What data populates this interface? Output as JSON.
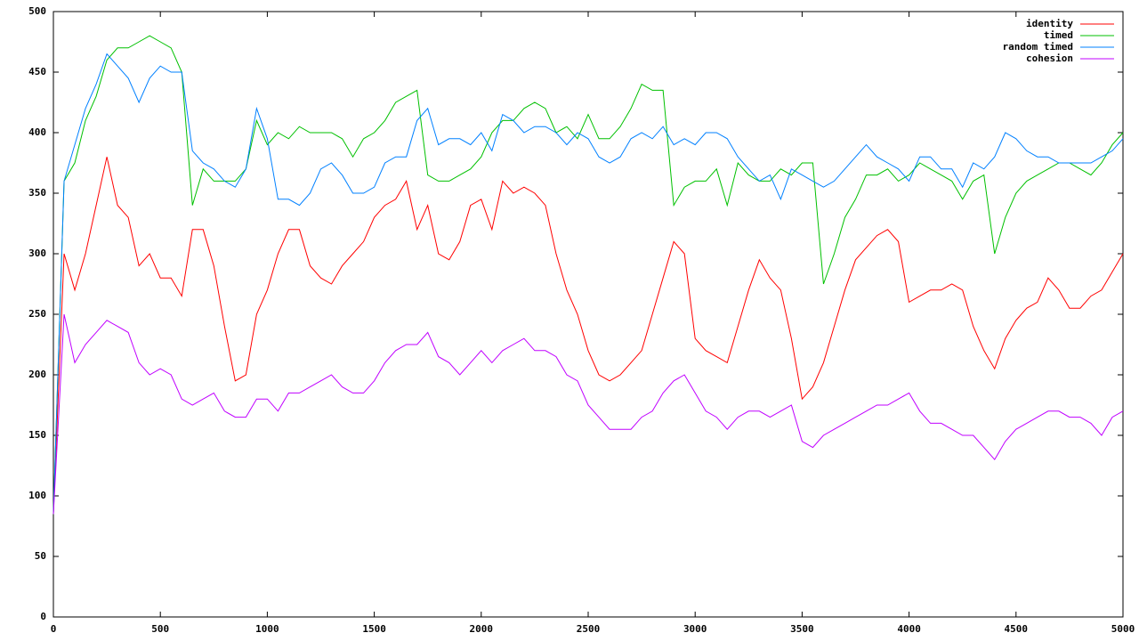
{
  "chart_data": {
    "type": "line",
    "x": [
      0,
      50,
      100,
      150,
      200,
      250,
      300,
      350,
      400,
      450,
      500,
      550,
      600,
      650,
      700,
      750,
      800,
      850,
      900,
      950,
      1000,
      1050,
      1100,
      1150,
      1200,
      1250,
      1300,
      1350,
      1400,
      1450,
      1500,
      1550,
      1600,
      1650,
      1700,
      1750,
      1800,
      1850,
      1900,
      1950,
      2000,
      2050,
      2100,
      2150,
      2200,
      2250,
      2300,
      2350,
      2400,
      2450,
      2500,
      2550,
      2600,
      2650,
      2700,
      2750,
      2800,
      2850,
      2900,
      2950,
      3000,
      3050,
      3100,
      3150,
      3200,
      3250,
      3300,
      3350,
      3400,
      3450,
      3500,
      3550,
      3600,
      3650,
      3700,
      3750,
      3800,
      3850,
      3900,
      3950,
      4000,
      4050,
      4100,
      4150,
      4200,
      4250,
      4300,
      4350,
      4400,
      4450,
      4500,
      4550,
      4600,
      4650,
      4700,
      4750,
      4800,
      4850,
      4900,
      4950,
      5000
    ],
    "series": [
      {
        "name": "identity",
        "color": "#ff0000",
        "values": [
          85,
          300,
          270,
          300,
          340,
          380,
          340,
          330,
          290,
          300,
          280,
          280,
          265,
          320,
          320,
          290,
          240,
          195,
          200,
          250,
          270,
          300,
          320,
          320,
          290,
          280,
          275,
          290,
          300,
          310,
          330,
          340,
          345,
          360,
          320,
          340,
          300,
          295,
          310,
          340,
          345,
          320,
          360,
          350,
          355,
          350,
          340,
          300,
          270,
          250,
          220,
          200,
          195,
          200,
          210,
          220,
          250,
          280,
          310,
          300,
          230,
          220,
          215,
          210,
          240,
          270,
          295,
          280,
          270,
          230,
          180,
          190,
          210,
          240,
          270,
          295,
          305,
          315,
          320,
          310,
          260,
          265,
          270,
          270,
          275,
          270,
          240,
          220,
          205,
          230,
          245,
          255,
          260,
          280,
          270,
          255,
          255,
          265,
          270,
          285,
          300
        ]
      },
      {
        "name": "timed",
        "color": "#00c000",
        "values": [
          85,
          360,
          375,
          410,
          430,
          460,
          470,
          470,
          475,
          480,
          475,
          470,
          450,
          340,
          370,
          360,
          360,
          360,
          370,
          410,
          390,
          400,
          395,
          405,
          400,
          400,
          400,
          395,
          380,
          395,
          400,
          410,
          425,
          430,
          435,
          365,
          360,
          360,
          365,
          370,
          380,
          400,
          410,
          410,
          420,
          425,
          420,
          400,
          405,
          395,
          415,
          395,
          395,
          405,
          420,
          440,
          435,
          435,
          340,
          355,
          360,
          360,
          370,
          340,
          375,
          365,
          360,
          360,
          370,
          365,
          375,
          375,
          275,
          300,
          330,
          345,
          365,
          365,
          370,
          360,
          365,
          375,
          370,
          365,
          360,
          345,
          360,
          365,
          300,
          330,
          350,
          360,
          365,
          370,
          375,
          375,
          370,
          365,
          375,
          390,
          400
        ]
      },
      {
        "name": "random timed",
        "color": "#0080ff",
        "values": [
          85,
          360,
          390,
          420,
          440,
          465,
          455,
          445,
          425,
          445,
          455,
          450,
          450,
          385,
          375,
          370,
          360,
          355,
          370,
          420,
          395,
          345,
          345,
          340,
          350,
          370,
          375,
          365,
          350,
          350,
          355,
          375,
          380,
          380,
          410,
          420,
          390,
          395,
          395,
          390,
          400,
          385,
          415,
          410,
          400,
          405,
          405,
          400,
          390,
          400,
          395,
          380,
          375,
          380,
          395,
          400,
          395,
          405,
          390,
          395,
          390,
          400,
          400,
          395,
          380,
          370,
          360,
          365,
          345,
          370,
          365,
          360,
          355,
          360,
          370,
          380,
          390,
          380,
          375,
          370,
          360,
          380,
          380,
          370,
          370,
          355,
          375,
          370,
          380,
          400,
          395,
          385,
          380,
          380,
          375,
          375,
          375,
          375,
          380,
          385,
          395
        ]
      },
      {
        "name": "cohesion",
        "color": "#c000ff",
        "values": [
          85,
          250,
          210,
          225,
          235,
          245,
          240,
          235,
          210,
          200,
          205,
          200,
          180,
          175,
          180,
          185,
          170,
          165,
          165,
          180,
          180,
          170,
          185,
          185,
          190,
          195,
          200,
          190,
          185,
          185,
          195,
          210,
          220,
          225,
          225,
          235,
          215,
          210,
          200,
          210,
          220,
          210,
          220,
          225,
          230,
          220,
          220,
          215,
          200,
          195,
          175,
          165,
          155,
          155,
          155,
          165,
          170,
          185,
          195,
          200,
          185,
          170,
          165,
          155,
          165,
          170,
          170,
          165,
          170,
          175,
          145,
          140,
          150,
          155,
          160,
          165,
          170,
          175,
          175,
          180,
          185,
          170,
          160,
          160,
          155,
          150,
          150,
          140,
          130,
          145,
          155,
          160,
          165,
          170,
          170,
          165,
          165,
          160,
          150,
          165,
          170
        ]
      }
    ],
    "xlim": [
      0,
      5000
    ],
    "xticks": [
      0,
      500,
      1000,
      1500,
      2000,
      2500,
      3000,
      3500,
      4000,
      4500,
      5000
    ],
    "ylim": [
      0,
      500
    ],
    "yticks": [
      0,
      50,
      100,
      150,
      200,
      250,
      300,
      350,
      400,
      450,
      500
    ],
    "grid": false,
    "legend": "top-right"
  }
}
